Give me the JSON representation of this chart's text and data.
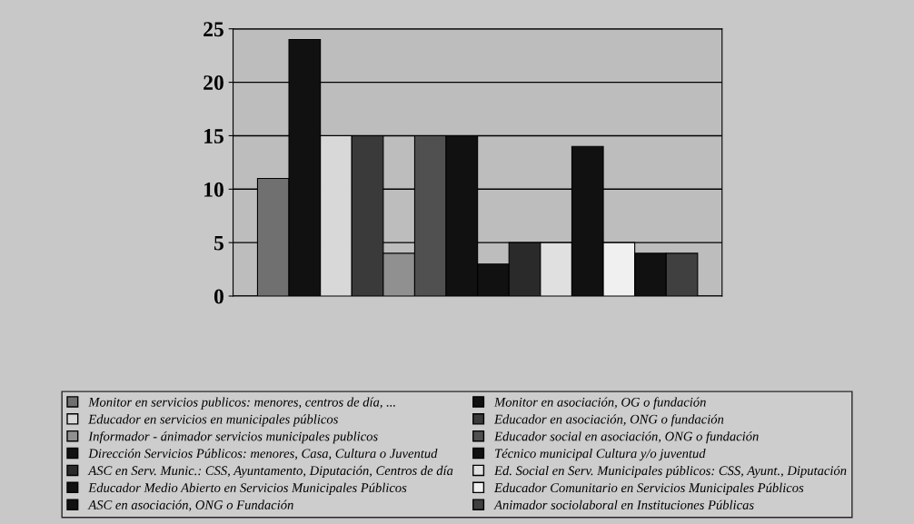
{
  "chart_data": {
    "type": "bar",
    "categories": [
      null
    ],
    "series": [
      {
        "name": "Monitor en servicios publicos: menores, centros de día, ...",
        "color": "#707070",
        "values": [
          11
        ]
      },
      {
        "name": "Monitor en asociación, OG o fundación",
        "color": "#111111",
        "values": [
          24
        ]
      },
      {
        "name": "Educador en servicios en municipales públicos",
        "color": "#d8d8d8",
        "values": [
          15
        ]
      },
      {
        "name": "Educador en asociación, ONG o fundación",
        "color": "#3a3a3a",
        "values": [
          15
        ]
      },
      {
        "name": "Informador - ánimador servicios municipales publicos",
        "color": "#909090",
        "values": [
          4
        ]
      },
      {
        "name": "Educador social en asociación, ONG o fundación",
        "color": "#505050",
        "values": [
          15
        ]
      },
      {
        "name": "Dirección Servicios Públicos: menores, Casa, Cultura o Juventud",
        "color": "#111111",
        "values": [
          15
        ]
      },
      {
        "name": "Técnico municipal Cultura y/o juventud",
        "color": "#111111",
        "values": [
          3
        ]
      },
      {
        "name": "ASC en Serv. Munic.: CSS, Ayuntamento, Diputación, Centros de día",
        "color": "#2a2a2a",
        "values": [
          5
        ]
      },
      {
        "name": "Ed. Social en Serv. Municipales públicos: CSS, Ayunt., Diputación",
        "color": "#e0e0e0",
        "values": [
          5
        ]
      },
      {
        "name": "Educador Medio Abierto en Servicios Municipales Públicos",
        "color": "#111111",
        "values": [
          14
        ]
      },
      {
        "name": "Educador Comunitario en Servicios Municipales Públicos",
        "color": "#f0f0f0",
        "values": [
          5
        ]
      },
      {
        "name": "ASC en asociación, ONG o Fundación",
        "color": "#111111",
        "values": [
          4
        ]
      },
      {
        "name": "Animador sociolaboral en Instituciones Públicas",
        "color": "#404040",
        "values": [
          4
        ]
      }
    ],
    "ylim": [
      0,
      25
    ],
    "yticks": [
      0,
      5,
      10,
      15,
      20,
      25
    ],
    "grid": "y",
    "legend": "bottom"
  }
}
